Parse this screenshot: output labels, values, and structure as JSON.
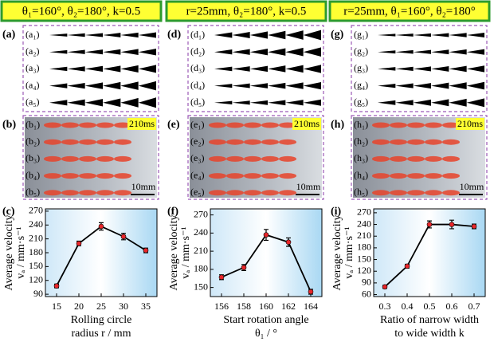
{
  "headers": [
    "θ₁=160°, θ₂=180°, k=0.5",
    "r=25mm, θ₂=180°, k=0.5",
    "r=25mm, θ₁=160°, θ₂=180°"
  ],
  "panels": [
    {
      "label": "(a)",
      "items": [
        "(a₁)",
        "(a₂)",
        "(a₃)",
        "(a₄)",
        "(a₅)"
      ]
    },
    {
      "label": "(b)",
      "items": [
        "(b₁)",
        "(b₂)",
        "(b₃)",
        "(b₄)",
        "(b₅)"
      ],
      "time": "210ms",
      "scale": "10mm"
    },
    {
      "label": "(d)",
      "items": [
        "(d₁)",
        "(d₂)",
        "(d₃)",
        "(d₄)",
        "(d₅)"
      ]
    },
    {
      "label": "(e)",
      "items": [
        "(e₁)",
        "(e₂)",
        "(e₃)",
        "(e₄)",
        "(e₅)"
      ],
      "time": "210ms",
      "scale": "10mm"
    },
    {
      "label": "(g)",
      "items": [
        "(g₁)",
        "(g₂)",
        "(g₃)",
        "(g₄)",
        "(g₅)"
      ]
    },
    {
      "label": "(h)",
      "items": [
        "(h₁)",
        "(h₂)",
        "(h₃)",
        "(h₄)",
        "(h₅)"
      ],
      "time": "210ms",
      "scale": "10mm"
    }
  ],
  "chart_data": [
    {
      "type": "line",
      "label": "(c)",
      "y_title": [
        "Average velocity",
        "vₐ / mm·s⁻¹"
      ],
      "x_title": [
        "Rolling circle",
        "radius r / mm"
      ],
      "x": [
        15,
        20,
        25,
        30,
        35
      ],
      "values": [
        108,
        200,
        237,
        215,
        185
      ],
      "errors": [
        4,
        5,
        8,
        7,
        5
      ],
      "color": "#000000",
      "marker_color": "#e8262a",
      "xlim": [
        12.5,
        37.5
      ],
      "xticks": [
        15,
        20,
        25,
        30,
        35
      ],
      "ylim": [
        85,
        275
      ],
      "yticks": [
        90,
        120,
        150,
        180,
        210,
        240,
        270
      ]
    },
    {
      "type": "line",
      "label": "(f)",
      "y_title": [
        "Average velocity",
        "vₐ / mm·s⁻¹"
      ],
      "x_title": [
        "Start rotation angle",
        "θ₁ / °"
      ],
      "x": [
        156,
        158,
        160,
        162,
        164
      ],
      "values": [
        167,
        183,
        237,
        225,
        143
      ],
      "errors": [
        4,
        5,
        9,
        7,
        4
      ],
      "color": "#000000",
      "marker_color": "#e8262a",
      "xlim": [
        155,
        165
      ],
      "xticks": [
        156,
        158,
        160,
        162,
        164
      ],
      "ylim": [
        135,
        280
      ],
      "yticks": [
        150,
        180,
        210,
        240,
        270
      ]
    },
    {
      "type": "line",
      "label": "(i)",
      "y_title": [
        "Average velocity",
        "vₐ / mm·s⁻¹"
      ],
      "x_title": [
        "Ratio of narrow width",
        "to wide width k"
      ],
      "x": [
        0.3,
        0.4,
        0.5,
        0.6,
        0.7
      ],
      "values": [
        80,
        133,
        240,
        240,
        235
      ],
      "errors": [
        4,
        5,
        9,
        11,
        6
      ],
      "color": "#000000",
      "marker_color": "#e8262a",
      "xlim": [
        0.25,
        0.75
      ],
      "xticks": [
        0.3,
        0.4,
        0.5,
        0.6,
        0.7
      ],
      "ylim": [
        55,
        280
      ],
      "yticks": [
        60,
        90,
        120,
        150,
        180,
        210,
        240,
        270
      ]
    }
  ]
}
